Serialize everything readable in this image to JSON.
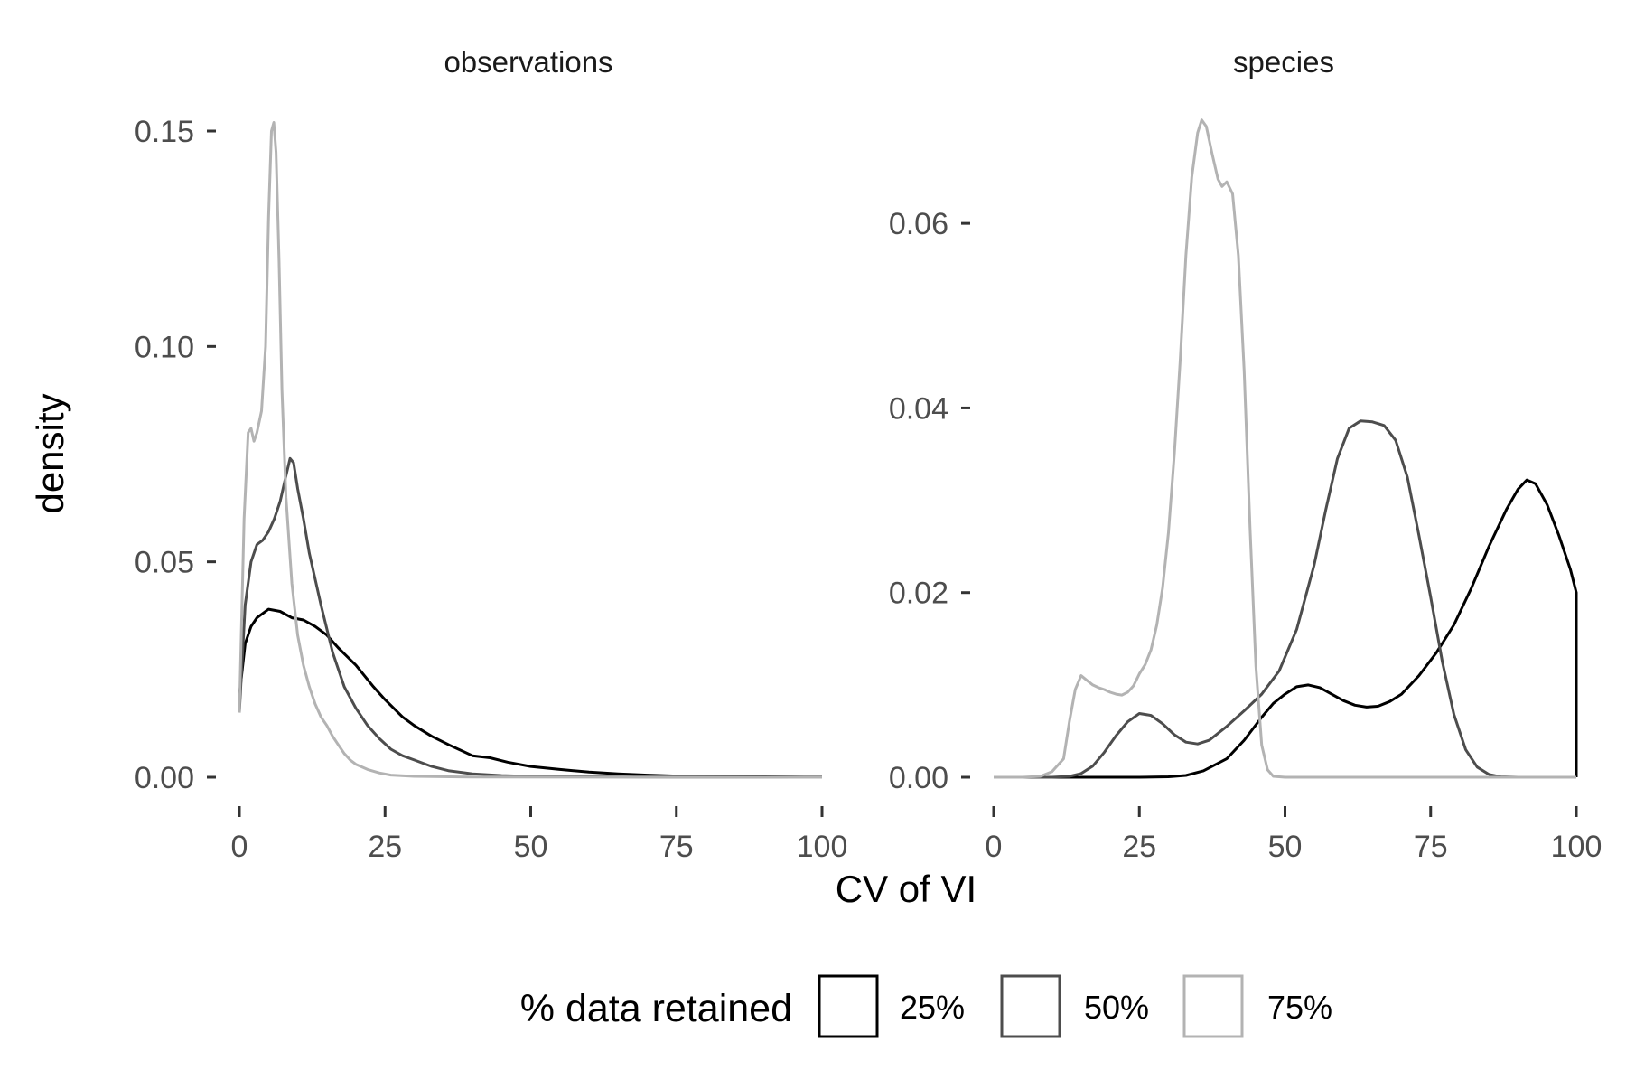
{
  "chart_data": [
    {
      "type": "area",
      "panel": "observations",
      "xlim": [
        0,
        100
      ],
      "ylim": [
        0,
        0.15
      ],
      "x_ticks": [
        0,
        25,
        50,
        75,
        100
      ],
      "y_ticks": [
        0.0,
        0.05,
        0.1,
        0.15
      ],
      "y_tick_labels": [
        "0.00",
        "0.05",
        "0.10",
        "0.15"
      ],
      "series": [
        {
          "name": "25%",
          "color": "#000000",
          "points": [
            [
              0,
              0.019
            ],
            [
              1,
              0.031
            ],
            [
              2,
              0.035
            ],
            [
              3,
              0.037
            ],
            [
              5,
              0.039
            ],
            [
              7,
              0.0385
            ],
            [
              9,
              0.037
            ],
            [
              11,
              0.0365
            ],
            [
              13,
              0.035
            ],
            [
              15,
              0.033
            ],
            [
              17,
              0.03
            ],
            [
              20,
              0.026
            ],
            [
              23,
              0.021
            ],
            [
              25,
              0.018
            ],
            [
              28,
              0.014
            ],
            [
              30,
              0.012
            ],
            [
              33,
              0.0095
            ],
            [
              36,
              0.0075
            ],
            [
              40,
              0.005
            ],
            [
              43,
              0.0045
            ],
            [
              46,
              0.0035
            ],
            [
              50,
              0.0025
            ],
            [
              55,
              0.0018
            ],
            [
              60,
              0.0012
            ],
            [
              65,
              0.0008
            ],
            [
              70,
              0.0005
            ],
            [
              75,
              0.0003
            ],
            [
              80,
              0.0002
            ],
            [
              90,
              0.0001
            ],
            [
              100,
              5e-05
            ]
          ]
        },
        {
          "name": "50%",
          "color": "#4d4d4d",
          "points": [
            [
              0,
              0.015
            ],
            [
              1,
              0.04
            ],
            [
              2,
              0.05
            ],
            [
              3,
              0.054
            ],
            [
              4,
              0.055
            ],
            [
              5,
              0.057
            ],
            [
              6,
              0.06
            ],
            [
              7,
              0.064
            ],
            [
              8,
              0.07
            ],
            [
              8.7,
              0.074
            ],
            [
              9.3,
              0.073
            ],
            [
              10,
              0.067
            ],
            [
              11,
              0.06
            ],
            [
              12,
              0.052
            ],
            [
              14,
              0.04
            ],
            [
              16,
              0.029
            ],
            [
              18,
              0.021
            ],
            [
              20,
              0.016
            ],
            [
              22,
              0.012
            ],
            [
              24,
              0.009
            ],
            [
              26,
              0.0065
            ],
            [
              28,
              0.005
            ],
            [
              30,
              0.004
            ],
            [
              33,
              0.0025
            ],
            [
              36,
              0.0015
            ],
            [
              40,
              0.0008
            ],
            [
              45,
              0.0004
            ],
            [
              50,
              0.0002
            ],
            [
              60,
              0.0001
            ],
            [
              75,
              3e-05
            ],
            [
              100,
              0.0
            ]
          ]
        },
        {
          "name": "75%",
          "color": "#b3b3b3",
          "points": [
            [
              0,
              0.015
            ],
            [
              0.8,
              0.06
            ],
            [
              1.5,
              0.08
            ],
            [
              2,
              0.081
            ],
            [
              2.5,
              0.078
            ],
            [
              3,
              0.08
            ],
            [
              3.8,
              0.085
            ],
            [
              4.5,
              0.1
            ],
            [
              5,
              0.13
            ],
            [
              5.5,
              0.15
            ],
            [
              5.9,
              0.152
            ],
            [
              6.3,
              0.145
            ],
            [
              6.8,
              0.12
            ],
            [
              7.3,
              0.09
            ],
            [
              8,
              0.065
            ],
            [
              9,
              0.045
            ],
            [
              10,
              0.033
            ],
            [
              11,
              0.026
            ],
            [
              12,
              0.021
            ],
            [
              13,
              0.017
            ],
            [
              14,
              0.014
            ],
            [
              15,
              0.012
            ],
            [
              16,
              0.0095
            ],
            [
              17,
              0.0075
            ],
            [
              18,
              0.0055
            ],
            [
              19,
              0.004
            ],
            [
              20,
              0.003
            ],
            [
              22,
              0.0018
            ],
            [
              24,
              0.001
            ],
            [
              26,
              0.0005
            ],
            [
              30,
              0.0002
            ],
            [
              40,
              5e-05
            ],
            [
              100,
              0.0
            ]
          ]
        }
      ]
    },
    {
      "type": "area",
      "panel": "species",
      "xlim": [
        0,
        100
      ],
      "ylim": [
        0,
        0.07
      ],
      "x_ticks": [
        0,
        25,
        50,
        75,
        100
      ],
      "y_ticks": [
        0.0,
        0.02,
        0.04,
        0.06
      ],
      "y_tick_labels": [
        "0.00",
        "0.02",
        "0.04",
        "0.06"
      ],
      "series": [
        {
          "name": "25%",
          "color": "#000000",
          "points": [
            [
              0,
              0
            ],
            [
              25,
              0
            ],
            [
              30,
              5e-05
            ],
            [
              33,
              0.0002
            ],
            [
              36,
              0.0007
            ],
            [
              40,
              0.002
            ],
            [
              43,
              0.004
            ],
            [
              46,
              0.0065
            ],
            [
              48,
              0.008
            ],
            [
              50,
              0.009
            ],
            [
              52,
              0.0098
            ],
            [
              54,
              0.01
            ],
            [
              56,
              0.0097
            ],
            [
              58,
              0.009
            ],
            [
              60,
              0.0083
            ],
            [
              62,
              0.0078
            ],
            [
              64,
              0.0076
            ],
            [
              66,
              0.0077
            ],
            [
              68,
              0.0082
            ],
            [
              70,
              0.009
            ],
            [
              73,
              0.011
            ],
            [
              76,
              0.0135
            ],
            [
              79,
              0.0165
            ],
            [
              82,
              0.0205
            ],
            [
              85,
              0.025
            ],
            [
              88,
              0.029
            ],
            [
              90,
              0.0312
            ],
            [
              91.5,
              0.0322
            ],
            [
              93,
              0.0318
            ],
            [
              95,
              0.0295
            ],
            [
              97,
              0.0262
            ],
            [
              99,
              0.0225
            ],
            [
              100,
              0.02
            ],
            [
              100,
              0
            ]
          ]
        },
        {
          "name": "50%",
          "color": "#4d4d4d",
          "points": [
            [
              0,
              0
            ],
            [
              10,
              0
            ],
            [
              13,
              0.0001
            ],
            [
              15,
              0.0004
            ],
            [
              17,
              0.0012
            ],
            [
              19,
              0.0027
            ],
            [
              21,
              0.0045
            ],
            [
              23,
              0.006
            ],
            [
              25,
              0.0069
            ],
            [
              27,
              0.0067
            ],
            [
              29,
              0.0058
            ],
            [
              31,
              0.0046
            ],
            [
              33,
              0.0038
            ],
            [
              35,
              0.0036
            ],
            [
              37,
              0.004
            ],
            [
              40,
              0.0055
            ],
            [
              43,
              0.0072
            ],
            [
              46,
              0.009
            ],
            [
              49,
              0.0115
            ],
            [
              52,
              0.016
            ],
            [
              55,
              0.023
            ],
            [
              57,
              0.029
            ],
            [
              59,
              0.0345
            ],
            [
              61,
              0.0378
            ],
            [
              63,
              0.0386
            ],
            [
              65,
              0.0385
            ],
            [
              67,
              0.0381
            ],
            [
              69,
              0.0365
            ],
            [
              71,
              0.0325
            ],
            [
              73,
              0.0262
            ],
            [
              75,
              0.0195
            ],
            [
              77,
              0.0125
            ],
            [
              79,
              0.0068
            ],
            [
              81,
              0.003
            ],
            [
              83,
              0.0011
            ],
            [
              85,
              0.0003
            ],
            [
              87,
              5e-05
            ],
            [
              90,
              0
            ],
            [
              100,
              0
            ]
          ]
        },
        {
          "name": "75%",
          "color": "#b3b3b3",
          "points": [
            [
              0,
              0
            ],
            [
              5,
              0
            ],
            [
              8,
              0.0001
            ],
            [
              10,
              0.0006
            ],
            [
              12,
              0.002
            ],
            [
              13,
              0.006
            ],
            [
              14,
              0.0095
            ],
            [
              15,
              0.011
            ],
            [
              16,
              0.0105
            ],
            [
              17,
              0.01
            ],
            [
              18,
              0.0097
            ],
            [
              19,
              0.0095
            ],
            [
              20,
              0.0092
            ],
            [
              21,
              0.009
            ],
            [
              22,
              0.0089
            ],
            [
              23,
              0.0092
            ],
            [
              24,
              0.0099
            ],
            [
              25,
              0.0112
            ],
            [
              26,
              0.0122
            ],
            [
              27,
              0.0138
            ],
            [
              28,
              0.0165
            ],
            [
              29,
              0.0205
            ],
            [
              30,
              0.0265
            ],
            [
              31,
              0.035
            ],
            [
              32,
              0.045
            ],
            [
              33,
              0.0565
            ],
            [
              34,
              0.065
            ],
            [
              35,
              0.0698
            ],
            [
              35.7,
              0.0712
            ],
            [
              36.5,
              0.0705
            ],
            [
              37.5,
              0.0675
            ],
            [
              38.5,
              0.0648
            ],
            [
              39.2,
              0.064
            ],
            [
              40,
              0.0645
            ],
            [
              41,
              0.0632
            ],
            [
              42,
              0.0565
            ],
            [
              43,
              0.044
            ],
            [
              44,
              0.027
            ],
            [
              45,
              0.012
            ],
            [
              46,
              0.0035
            ],
            [
              47,
              0.0008
            ],
            [
              48,
              0.0001
            ],
            [
              50,
              0
            ],
            [
              100,
              0
            ]
          ]
        }
      ]
    }
  ],
  "panels": [
    {
      "strip_title": "observations",
      "x_tick_labels": [
        "0",
        "25",
        "50",
        "75",
        "100"
      ],
      "y_tick_labels": [
        "0.00",
        "0.05",
        "0.10",
        "0.15"
      ]
    },
    {
      "strip_title": "species",
      "x_tick_labels": [
        "0",
        "25",
        "50",
        "75",
        "100"
      ],
      "y_tick_labels": [
        "0.00",
        "0.02",
        "0.04",
        "0.06"
      ]
    }
  ],
  "xlabel": "CV of VI",
  "ylabel": "density",
  "legend": {
    "title": "% data retained",
    "placement": "bottom",
    "items": [
      {
        "label": "25%",
        "color": "#000000"
      },
      {
        "label": "50%",
        "color": "#4d4d4d"
      },
      {
        "label": "75%",
        "color": "#b3b3b3"
      }
    ]
  }
}
